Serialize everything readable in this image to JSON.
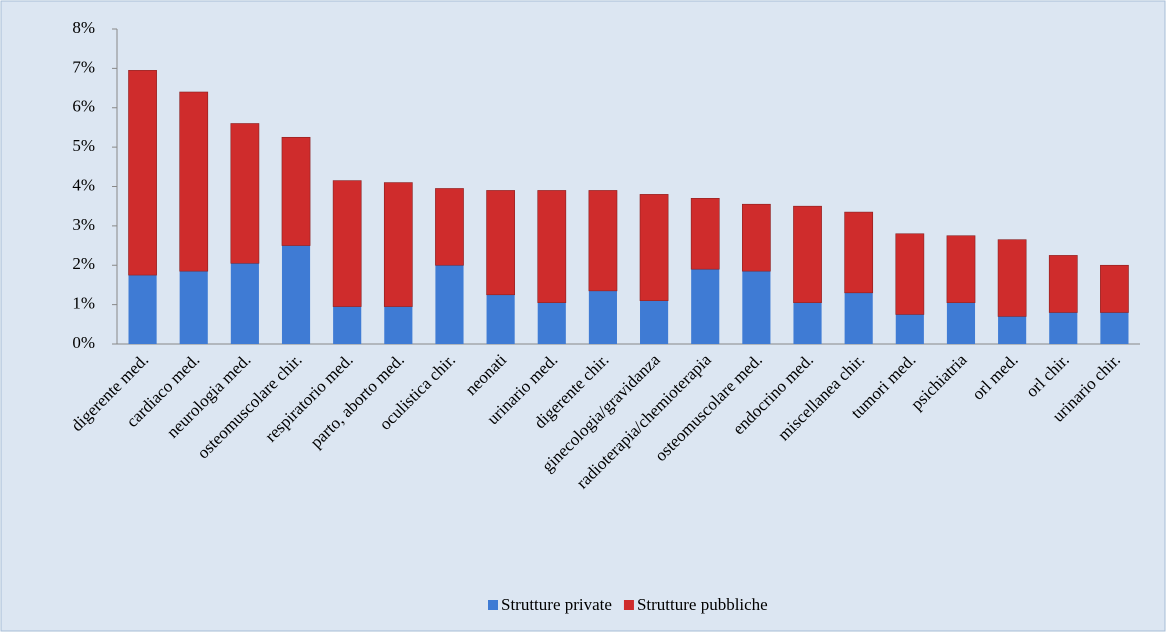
{
  "chart_data": {
    "type": "stacked-bar",
    "categories": [
      "digerente med.",
      "cardiaco med.",
      "neurologia med.",
      "osteomuscolare chir.",
      "respiratorio med.",
      "parto, aborto med.",
      "oculistica chir.",
      "neonati",
      "urinario med.",
      "digerente chir.",
      "ginecologia/gravidanza",
      "radioterapia/chemioterapia",
      "osteomuscolare med.",
      "endocrino med.",
      "miscellanea chir.",
      "tumori med.",
      "psichiatria",
      "orl med.",
      "orl chir.",
      "urinario chir."
    ],
    "series": [
      {
        "name": "Strutture private",
        "color": "#3f7bd4",
        "values": [
          1.75,
          1.85,
          2.05,
          2.5,
          0.95,
          0.95,
          2.0,
          1.25,
          1.05,
          1.35,
          1.1,
          1.9,
          1.85,
          1.05,
          1.3,
          0.75,
          1.05,
          0.7,
          0.8,
          0.8
        ]
      },
      {
        "name": "Strutture pubbliche",
        "color": "#cf2c2c",
        "values": [
          5.2,
          4.55,
          3.55,
          2.75,
          3.2,
          3.15,
          1.95,
          2.65,
          2.85,
          2.55,
          2.7,
          1.8,
          1.7,
          2.45,
          2.05,
          2.05,
          1.7,
          1.95,
          1.45,
          1.2
        ]
      }
    ],
    "ylim": [
      0,
      8
    ],
    "yticks": [
      {
        "value": 0,
        "label": "0%"
      },
      {
        "value": 1,
        "label": "1%"
      },
      {
        "value": 2,
        "label": "2%"
      },
      {
        "value": 3,
        "label": "3%"
      },
      {
        "value": 4,
        "label": "4%"
      },
      {
        "value": 5,
        "label": "5%"
      },
      {
        "value": 6,
        "label": "6%"
      },
      {
        "value": 7,
        "label": "7%"
      },
      {
        "value": 8,
        "label": "8%"
      }
    ],
    "legend": "bottom"
  }
}
